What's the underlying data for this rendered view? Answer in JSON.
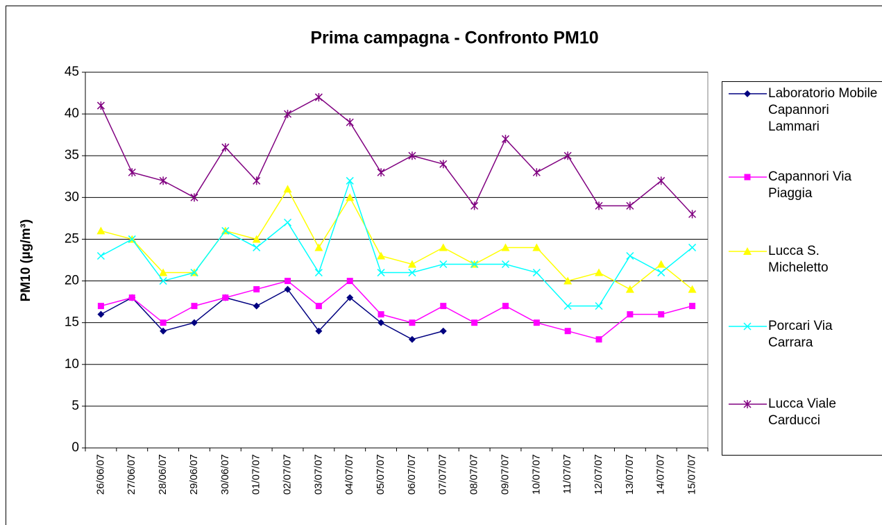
{
  "chart_data": {
    "type": "line",
    "title": "Prima campagna - Confronto PM10",
    "y_label": "PM10 (µg/m³)",
    "categories": [
      "26/06/07",
      "27/06/07",
      "28/06/07",
      "29/06/07",
      "30/06/07",
      "01/07/07",
      "02/07/07",
      "03/07/07",
      "04/07/07",
      "05/07/07",
      "06/07/07",
      "07/07/07",
      "08/07/07",
      "09/07/07",
      "10/07/07",
      "11/07/07",
      "12/07/07",
      "13/07/07",
      "14/07/07",
      "15/07/07"
    ],
    "series": [
      {
        "name": "Laboratorio Mobile Capannori Lammari",
        "color": "#000080",
        "marker": "diamond",
        "values": [
          16,
          18,
          14,
          15,
          18,
          17,
          19,
          14,
          18,
          15,
          13,
          14,
          null,
          null,
          null,
          null,
          null,
          null,
          null,
          null
        ]
      },
      {
        "name": "Capannori Via Piaggia",
        "color": "#ff00ff",
        "marker": "square",
        "values": [
          17,
          18,
          15,
          17,
          18,
          19,
          20,
          17,
          20,
          16,
          15,
          17,
          15,
          17,
          15,
          14,
          13,
          16,
          16,
          17
        ]
      },
      {
        "name": "Lucca S. Micheletto",
        "color": "#ffff00",
        "marker": "triangle",
        "values": [
          26,
          25,
          21,
          21,
          26,
          25,
          31,
          24,
          30,
          23,
          22,
          24,
          22,
          24,
          24,
          20,
          21,
          19,
          22,
          19
        ]
      },
      {
        "name": "Porcari Via Carrara",
        "color": "#00ffff",
        "marker": "x",
        "values": [
          23,
          25,
          20,
          21,
          26,
          24,
          27,
          21,
          32,
          21,
          21,
          22,
          22,
          22,
          21,
          17,
          17,
          23,
          21,
          24
        ]
      },
      {
        "name": "Lucca Viale Carducci",
        "color": "#800080",
        "marker": "star",
        "values": [
          41,
          33,
          32,
          30,
          36,
          32,
          40,
          42,
          39,
          33,
          35,
          34,
          29,
          37,
          33,
          35,
          29,
          29,
          32,
          28
        ]
      }
    ],
    "ylim": [
      0,
      45
    ],
    "yticks": [
      0,
      5,
      10,
      15,
      20,
      25,
      30,
      35,
      40,
      45
    ],
    "grid": true,
    "legend": "right"
  }
}
